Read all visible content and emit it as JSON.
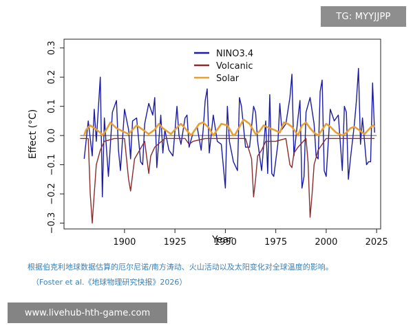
{
  "watermark": "TG: MYYJJPP",
  "caption": {
    "line1": "根据伯克利地球数据估算的厄尔尼诺/南方涛动、火山活动以及太阳变化对全球温度的影响。",
    "line2": "（Foster et al.《地球物理研究快报》2026）"
  },
  "site_url": "www.livehub-hth-game.com",
  "colors": {
    "nino": "#1a1aa8",
    "volcanic": "#8b2a2a",
    "solar": "#e8a030"
  },
  "chart_data": {
    "type": "line",
    "title": "",
    "xlabel": "Year",
    "ylabel": "Effect (°C)",
    "xlim": [
      1870,
      2027
    ],
    "ylim": [
      -0.32,
      0.33
    ],
    "xticks": [
      1900,
      1925,
      1950,
      1975,
      2000,
      2025
    ],
    "yticks": [
      -0.3,
      -0.2,
      -0.1,
      0.0,
      0.1,
      0.2,
      0.3
    ],
    "ytick_labels": [
      "−0.3",
      "−0.2",
      "−0.1",
      "0.0",
      "0.1",
      "0.2",
      "0.3"
    ],
    "legend_position": "top-center",
    "reference_line_y": 0,
    "series": [
      {
        "name": "NINO3.4",
        "color": "#1a1aa8",
        "x": [
          1880,
          1882,
          1884,
          1885,
          1886,
          1888,
          1889,
          1890,
          1892,
          1894,
          1896,
          1897,
          1898,
          1900,
          1902,
          1903,
          1904,
          1906,
          1908,
          1909,
          1910,
          1912,
          1914,
          1915,
          1916,
          1918,
          1919,
          1920,
          1922,
          1924,
          1926,
          1927,
          1928,
          1930,
          1931,
          1932,
          1934,
          1936,
          1938,
          1939,
          1940,
          1941,
          1942,
          1944,
          1946,
          1948,
          1950,
          1951,
          1952,
          1954,
          1956,
          1957,
          1958,
          1960,
          1962,
          1964,
          1965,
          1966,
          1968,
          1970,
          1971,
          1972,
          1973,
          1974,
          1976,
          1977,
          1978,
          1980,
          1982,
          1983,
          1984,
          1986,
          1987,
          1988,
          1989,
          1990,
          1992,
          1994,
          1995,
          1996,
          1997,
          1998,
          1999,
          2000,
          2002,
          2004,
          2006,
          2008,
          2009,
          2010,
          2011,
          2012,
          2014,
          2015,
          2016,
          2017,
          2018,
          2020,
          2021,
          2022,
          2023,
          2024
        ],
        "y": [
          -0.08,
          0.05,
          -0.07,
          0.09,
          -0.02,
          0.2,
          -0.21,
          0.06,
          -0.14,
          0.08,
          0.12,
          -0.05,
          -0.12,
          0.09,
          0.02,
          -0.08,
          0.05,
          0.06,
          -0.09,
          -0.1,
          0.04,
          0.11,
          0.07,
          0.13,
          -0.11,
          0.07,
          -0.06,
          0.02,
          -0.05,
          -0.07,
          0.1,
          0.0,
          -0.03,
          0.06,
          0.07,
          -0.04,
          0.01,
          0.03,
          -0.05,
          0.02,
          0.12,
          0.16,
          -0.06,
          0.07,
          -0.02,
          -0.03,
          -0.18,
          0.1,
          -0.02,
          -0.09,
          -0.12,
          0.13,
          0.1,
          -0.04,
          -0.04,
          0.1,
          0.08,
          -0.02,
          -0.12,
          0.05,
          -0.13,
          0.14,
          -0.13,
          -0.14,
          -0.03,
          0.11,
          0.02,
          0.04,
          0.13,
          0.21,
          -0.07,
          0.06,
          0.12,
          -0.18,
          -0.14,
          0.08,
          0.13,
          0.04,
          -0.07,
          -0.08,
          0.15,
          0.19,
          -0.12,
          -0.14,
          0.09,
          0.05,
          0.07,
          -0.12,
          0.1,
          0.08,
          -0.15,
          -0.08,
          0.04,
          0.12,
          0.23,
          -0.03,
          0.06,
          -0.1,
          -0.09,
          -0.09,
          0.18,
          0.01
        ]
      },
      {
        "name": "Volcanic",
        "color": "#8b2a2a",
        "x": [
          1878,
          1882,
          1883,
          1884,
          1885,
          1886,
          1888,
          1890,
          1895,
          1900,
          1902,
          1903,
          1905,
          1910,
          1912,
          1913,
          1915,
          1920,
          1930,
          1932,
          1934,
          1940,
          1950,
          1960,
          1963,
          1964,
          1965,
          1966,
          1968,
          1970,
          1975,
          1980,
          1982,
          1983,
          1984,
          1986,
          1990,
          1991,
          1992,
          1993,
          1994,
          1996,
          2000,
          2010,
          2024
        ],
        "y": [
          -0.01,
          -0.01,
          -0.2,
          -0.3,
          -0.2,
          -0.1,
          -0.05,
          -0.02,
          -0.01,
          -0.01,
          -0.15,
          -0.19,
          -0.08,
          -0.02,
          -0.13,
          -0.07,
          -0.04,
          -0.01,
          -0.01,
          -0.03,
          -0.02,
          -0.01,
          -0.01,
          -0.01,
          -0.08,
          -0.21,
          -0.15,
          -0.07,
          -0.05,
          -0.02,
          -0.02,
          -0.01,
          -0.1,
          -0.11,
          -0.06,
          -0.04,
          -0.01,
          -0.09,
          -0.28,
          -0.2,
          -0.1,
          -0.05,
          -0.01,
          -0.01,
          -0.01
        ]
      },
      {
        "name": "Solar",
        "color": "#e8a030",
        "x": [
          1880,
          1881,
          1883,
          1886,
          1888,
          1889,
          1891,
          1893,
          1896,
          1899,
          1902,
          1904,
          1906,
          1909,
          1912,
          1915,
          1917,
          1919,
          1923,
          1925,
          1928,
          1930,
          1933,
          1935,
          1937,
          1939,
          1942,
          1944,
          1946,
          1948,
          1951,
          1954,
          1955,
          1957,
          1959,
          1962,
          1965,
          1967,
          1969,
          1972,
          1974,
          1977,
          1979,
          1981,
          1983,
          1986,
          1988,
          1990,
          1992,
          1994,
          1996,
          1998,
          2000,
          2002,
          2005,
          2008,
          2010,
          2012,
          2014,
          2016,
          2019,
          2021,
          2023,
          2024
        ],
        "y": [
          0.0,
          0.02,
          0.035,
          0.02,
          0.01,
          0.0,
          0.02,
          0.045,
          0.025,
          0.015,
          0.005,
          0.02,
          0.035,
          0.02,
          0.005,
          0.02,
          0.04,
          0.025,
          0.005,
          0.02,
          0.04,
          0.025,
          0.0,
          0.02,
          0.04,
          0.045,
          0.025,
          0.0,
          0.02,
          0.04,
          0.035,
          0.0,
          0.005,
          0.03,
          0.055,
          0.04,
          0.005,
          0.015,
          0.035,
          0.025,
          0.02,
          0.01,
          0.045,
          0.04,
          0.03,
          0.0,
          0.035,
          0.045,
          0.025,
          0.01,
          0.0,
          0.02,
          0.04,
          0.03,
          0.01,
          0.0,
          0.01,
          0.025,
          0.03,
          0.02,
          0.005,
          0.02,
          0.035,
          0.03
        ]
      }
    ]
  }
}
